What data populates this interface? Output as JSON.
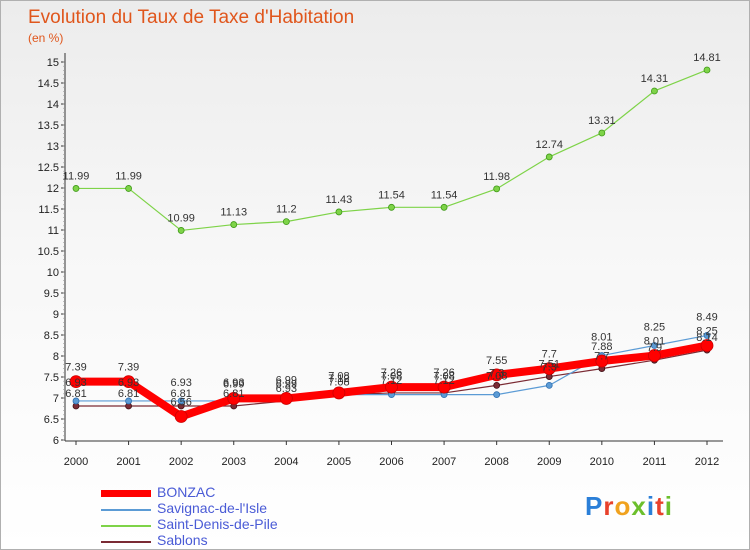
{
  "title": "Evolution du Taux de Taxe d'Habitation",
  "subtitle": "(en %)",
  "logo": {
    "letters": [
      {
        "char": "P",
        "color": "#2b7fd8"
      },
      {
        "char": "r",
        "color": "#e8412b"
      },
      {
        "char": "o",
        "color": "#f0a21e"
      },
      {
        "char": "x",
        "color": "#6cbf2c"
      },
      {
        "char": "i",
        "color": "#2b7fd8"
      },
      {
        "char": "t",
        "color": "#e8412b"
      },
      {
        "char": "i",
        "color": "#6cbf2c"
      }
    ]
  },
  "chart_data": {
    "type": "line",
    "title": "Evolution du Taux de Taxe d'Habitation",
    "ylabel": "(en %)",
    "x": [
      "2000",
      "2001",
      "2002",
      "2003",
      "2004",
      "2005",
      "2006",
      "2007",
      "2008",
      "2009",
      "2010",
      "2011",
      "2012"
    ],
    "ylim": [
      6,
      15
    ],
    "yticks": [
      "6",
      "6.5",
      "7",
      "7.5",
      "8",
      "8.5",
      "9",
      "9.5",
      "10",
      "10.5",
      "11",
      "11.5",
      "12",
      "12.5",
      "13",
      "13.5",
      "14",
      "14.5",
      "15"
    ],
    "grid": false,
    "legend_position": "bottom-left",
    "series": [
      {
        "name": "BONZAC",
        "color": "#ff0000",
        "values": [
          7.39,
          7.39,
          6.56,
          6.99,
          6.99,
          7.12,
          7.26,
          7.26,
          7.55,
          7.7,
          7.88,
          8.01,
          8.25
        ],
        "labels": [
          "7.39",
          "7.39",
          "6.56",
          "6.99",
          "6.99",
          "7.12",
          "7.26",
          "7.26",
          "7.55",
          "7.7",
          "7.88",
          "8.01",
          "8.25"
        ]
      },
      {
        "name": "Savignac-de-l'Isle",
        "color": "#5b9bd5",
        "values": [
          6.93,
          6.93,
          6.93,
          6.93,
          6.99,
          7.08,
          7.08,
          7.08,
          7.08,
          7.3,
          8.01,
          8.25,
          8.49
        ],
        "labels": [
          "6.93",
          "6.93",
          "6.93",
          "6.93",
          "6.99",
          "7.08",
          "7.08",
          "7.08",
          "7.08",
          "7.3",
          "8.01",
          "8.25",
          "8.49"
        ]
      },
      {
        "name": "Saint-Denis-de-Pile",
        "color": "#7ed348",
        "values": [
          11.99,
          11.99,
          10.99,
          11.13,
          11.2,
          11.43,
          11.54,
          11.54,
          11.98,
          12.74,
          13.31,
          14.31,
          14.81
        ],
        "labels": [
          "11.99",
          "11.99",
          "10.99",
          "11.13",
          "11.2",
          "11.43",
          "11.54",
          "11.54",
          "11.98",
          "12.74",
          "13.31",
          "14.31",
          "14.81"
        ]
      },
      {
        "name": "Sablons",
        "color": "#7b2b34",
        "values": [
          6.81,
          6.81,
          6.81,
          6.81,
          6.93,
          7.08,
          7.12,
          7.12,
          7.3,
          7.51,
          7.7,
          7.9,
          8.14
        ],
        "labels": [
          "6.81",
          "6.81",
          "6.81",
          "6.81",
          "6.93",
          "7.08",
          "7.12",
          "7.12",
          "7.3",
          "7.51",
          "7.7",
          "7.9",
          "8.14"
        ]
      }
    ]
  }
}
